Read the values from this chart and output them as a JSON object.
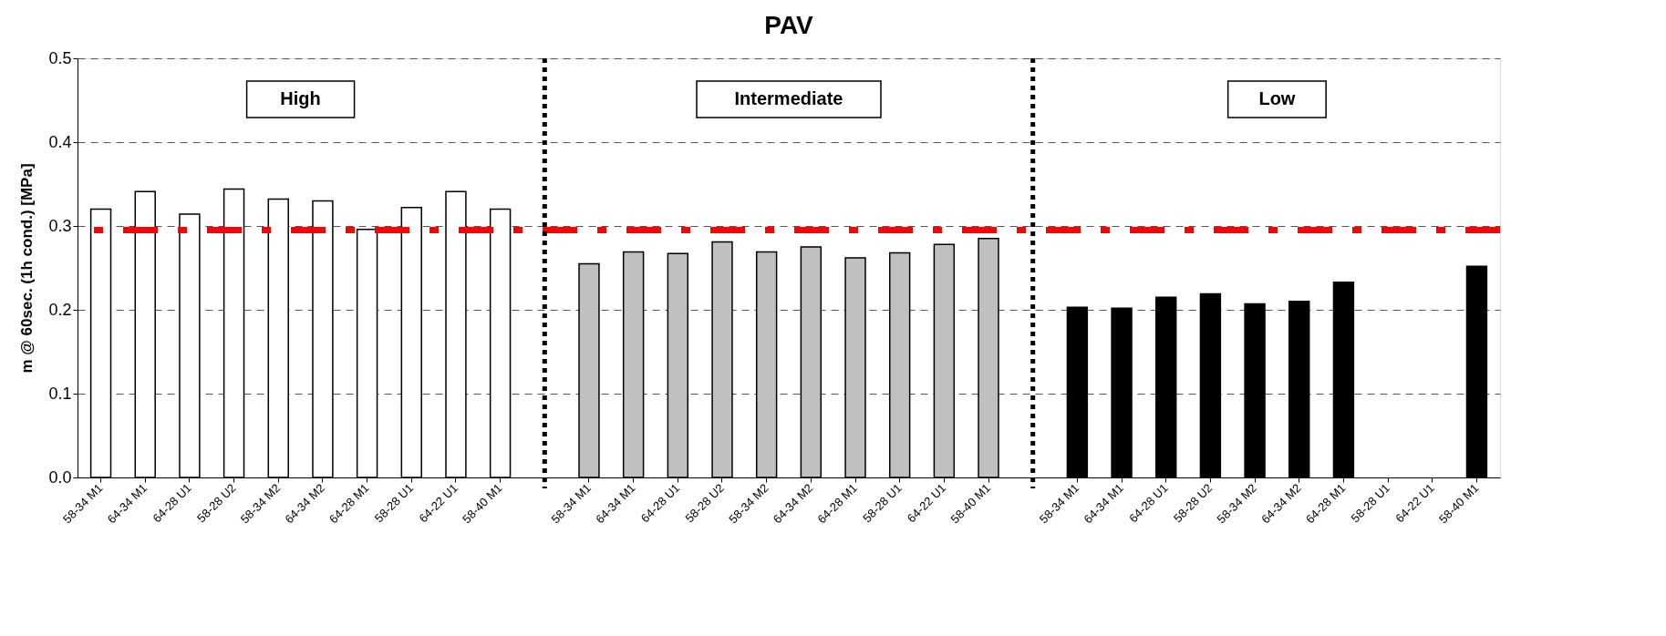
{
  "chart_data": {
    "type": "bar",
    "title": "PAV",
    "ylabel": "m @ 60sec. (1h cond.) [MPa]",
    "categories": [
      "58-34 M1",
      "64-34 M1",
      "64-28 U1",
      "58-28 U2",
      "58-34 M2",
      "64-34 M2",
      "64-28 M1",
      "58-28 U1",
      "64-22 U1",
      "58-40 M1",
      null,
      "58-34 M1",
      "64-34 M1",
      "64-28 U1",
      "58-28 U2",
      "58-34 M2",
      "64-34 M2",
      "64-28 M1",
      "58-28 U1",
      "64-22 U1",
      "58-40 M1",
      null,
      "58-34 M1",
      "64-34 M1",
      "64-28 U1",
      "58-28 U2",
      "58-34 M2",
      "64-34 M2",
      "64-28 M1",
      "58-28 U1",
      "64-22 U1",
      "58-40 M1"
    ],
    "series": [
      {
        "name": "High",
        "color": "#ffffff",
        "values": [
          0.32,
          0.341,
          0.314,
          0.344,
          0.332,
          0.33,
          0.296,
          0.322,
          0.341,
          0.32,
          null,
          null,
          null,
          null,
          null,
          null,
          null,
          null,
          null,
          null,
          null,
          null,
          null,
          null,
          null,
          null,
          null,
          null,
          null,
          null,
          null,
          null
        ]
      },
      {
        "name": "Intermediate",
        "color": "#c0c0c0",
        "values": [
          null,
          null,
          null,
          null,
          null,
          null,
          null,
          null,
          null,
          null,
          null,
          0.255,
          0.269,
          0.267,
          0.281,
          0.269,
          0.275,
          0.262,
          0.268,
          0.278,
          0.285,
          null,
          null,
          null,
          null,
          null,
          null,
          null,
          null,
          null,
          null,
          null
        ]
      },
      {
        "name": "Low",
        "color": "#000000",
        "values": [
          null,
          null,
          null,
          null,
          null,
          null,
          null,
          null,
          null,
          null,
          null,
          null,
          null,
          null,
          null,
          null,
          null,
          null,
          null,
          null,
          null,
          null,
          0.203,
          0.202,
          0.215,
          0.219,
          0.207,
          0.21,
          0.233,
          null,
          null,
          0.252
        ]
      }
    ],
    "ylim": [
      0,
      0.5
    ],
    "yticks": [
      {
        "value": 0,
        "label": "0.0"
      },
      {
        "value": 0.1,
        "label": "0.1"
      },
      {
        "value": 0.2,
        "label": "0.2"
      },
      {
        "value": 0.3,
        "label": "0.3"
      },
      {
        "value": 0.4,
        "label": "0.4"
      },
      {
        "value": 0.5,
        "label": "0.5"
      }
    ],
    "grid": "y",
    "legend": false,
    "ref_lines": [
      {
        "axis": "y",
        "value": 0.295,
        "color": "#ff0000",
        "line_style": "dashed"
      }
    ]
  }
}
